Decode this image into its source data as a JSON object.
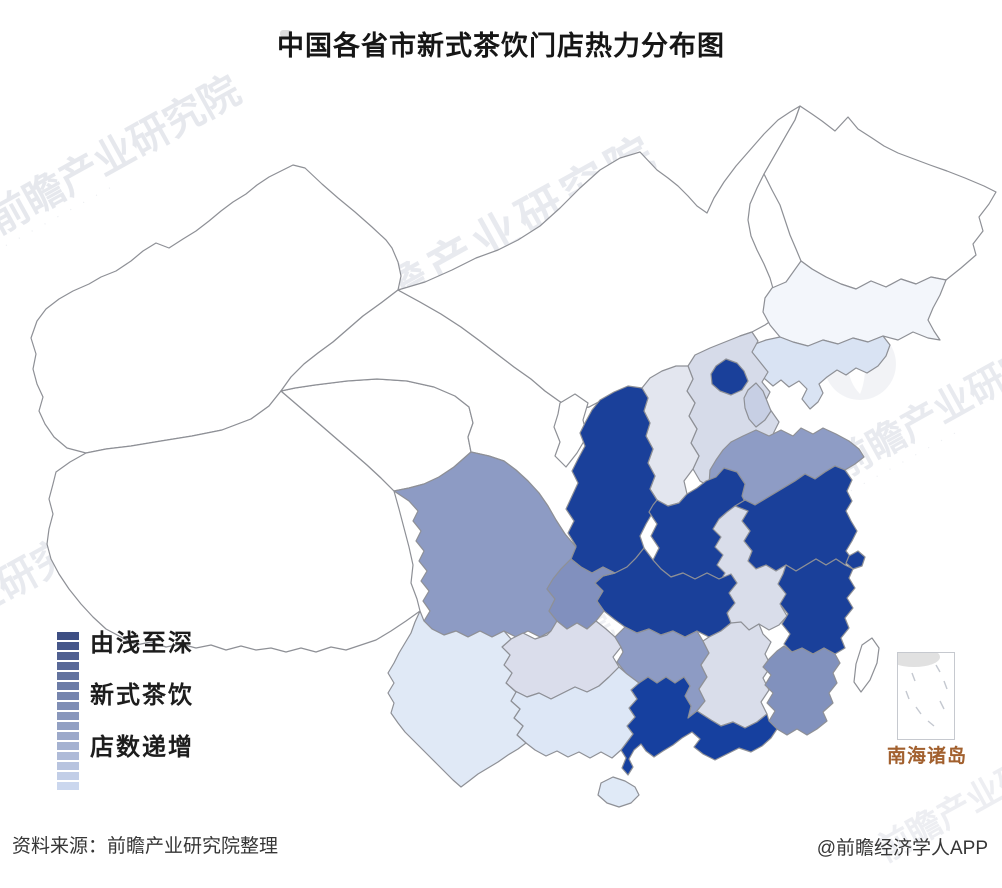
{
  "title": "中国各省市新式茶饮门店热力分布图",
  "legend": {
    "line1": "由浅至深",
    "line2": "新式茶饮",
    "line3": "店数递增",
    "swatches": [
      "#3D4E83",
      "#46578A",
      "#506091",
      "#596998",
      "#63739F",
      "#6C7CA7",
      "#7685AE",
      "#7F8EB5",
      "#8997BC",
      "#92A0C3",
      "#9CA9CA",
      "#A5B2D1",
      "#AFBBD8",
      "#B8C4DF",
      "#C2CEE7",
      "#CBD7EE"
    ]
  },
  "inset": {
    "label": "南海诸岛",
    "label_color": "#a2602e"
  },
  "footer": {
    "source": "资料来源：前瞻产业研究院整理",
    "credit": "@前瞻经济学人APP"
  },
  "watermark": {
    "text": "前瞻产业研究院",
    "dots": "· · · · · · · · ·"
  },
  "map": {
    "stroke": "#8e9096",
    "provinces": {
      "xinjiang": {
        "name": "新疆",
        "color": "#FFFFFF",
        "level": 0
      },
      "xizang": {
        "name": "西藏",
        "color": "#FFFFFF",
        "level": 0
      },
      "qinghai": {
        "name": "青海",
        "color": "#FFFFFF",
        "level": 0
      },
      "gansu": {
        "name": "甘肃",
        "color": "#FFFFFF",
        "level": 0
      },
      "neimenggu": {
        "name": "内蒙古",
        "color": "#FFFFFF",
        "level": 0
      },
      "heilongjiang": {
        "name": "黑龙江",
        "color": "#FFFFFF",
        "level": 0
      },
      "jilin": {
        "name": "吉林",
        "color": "#F3F6FB",
        "level": 1
      },
      "liaoning": {
        "name": "辽宁",
        "color": "#D9E3F3",
        "level": 2
      },
      "hebei": {
        "name": "河北",
        "color": "#D6DBE9",
        "level": 3
      },
      "shanxi": {
        "name": "山西",
        "color": "#E3E6EF",
        "level": 3
      },
      "ningxia": {
        "name": "宁夏",
        "color": "#FFFFFF",
        "level": 0
      },
      "shaanxi": {
        "name": "陕西",
        "color": "#1A409A",
        "level": 5
      },
      "beijing": {
        "name": "北京",
        "color": "#1A409A",
        "level": 5
      },
      "tianjin": {
        "name": "天津",
        "color": "#C7CFE4",
        "level": 3
      },
      "shandong": {
        "name": "山东",
        "color": "#8E9CC5",
        "level": 4
      },
      "henan": {
        "name": "河南",
        "color": "#1A409A",
        "level": 5
      },
      "jiangsu": {
        "name": "江苏",
        "color": "#1A409A",
        "level": 5
      },
      "shanghai": {
        "name": "上海",
        "color": "#1A409A",
        "level": 5
      },
      "anhui": {
        "name": "安徽",
        "color": "#D9DDEA",
        "level": 3
      },
      "hubei": {
        "name": "湖北",
        "color": "#1A409A",
        "level": 5
      },
      "sichuan": {
        "name": "四川",
        "color": "#8D9BC4",
        "level": 4
      },
      "chongqing": {
        "name": "重庆",
        "color": "#8190BE",
        "level": 4
      },
      "guizhou": {
        "name": "贵州",
        "color": "#DADDEB",
        "level": 3
      },
      "hunan": {
        "name": "湖南",
        "color": "#8D9BC4",
        "level": 4
      },
      "jiangxi": {
        "name": "江西",
        "color": "#D9DDEA",
        "level": 3
      },
      "zhejiang": {
        "name": "浙江",
        "color": "#1A409A",
        "level": 5
      },
      "fujian": {
        "name": "福建",
        "color": "#8191BD",
        "level": 4
      },
      "guangdong": {
        "name": "广东",
        "color": "#16409F",
        "level": 5
      },
      "guangxi": {
        "name": "广西",
        "color": "#DDE7F6",
        "level": 2
      },
      "yunnan": {
        "name": "云南",
        "color": "#E0E9F6",
        "level": 2
      },
      "hainan": {
        "name": "海南",
        "color": "#E0EAF7",
        "level": 2
      },
      "taiwan": {
        "name": "台湾",
        "color": "#FFFFFF",
        "level": 0
      }
    }
  },
  "chart_data": {
    "type": "heatmap",
    "title": "中国各省市新式茶饮门店热力分布图",
    "legend": [
      "由浅至深",
      "新式茶饮",
      "店数递增"
    ],
    "value_scale": "ordinal 0-5 (5 = deepest color = most stores)",
    "level_palette": {
      "0": "#FFFFFF",
      "1": "#F3F6FB",
      "2": "#DDE7F6",
      "3": "#D8DCEA",
      "4": "#8D9BC4",
      "5": "#1A409A"
    },
    "series": [
      {
        "province": "北京",
        "level": 5
      },
      {
        "province": "陕西",
        "level": 5
      },
      {
        "province": "河南",
        "level": 5
      },
      {
        "province": "湖北",
        "level": 5
      },
      {
        "province": "江苏",
        "level": 5
      },
      {
        "province": "上海",
        "level": 5
      },
      {
        "province": "浙江",
        "level": 5
      },
      {
        "province": "广东",
        "level": 5
      },
      {
        "province": "山东",
        "level": 4
      },
      {
        "province": "四川",
        "level": 4
      },
      {
        "province": "重庆",
        "level": 4
      },
      {
        "province": "湖南",
        "level": 4
      },
      {
        "province": "福建",
        "level": 4
      },
      {
        "province": "天津",
        "level": 3
      },
      {
        "province": "河北",
        "level": 3
      },
      {
        "province": "山西",
        "level": 3
      },
      {
        "province": "安徽",
        "level": 3
      },
      {
        "province": "江西",
        "level": 3
      },
      {
        "province": "贵州",
        "level": 3
      },
      {
        "province": "辽宁",
        "level": 2
      },
      {
        "province": "云南",
        "level": 2
      },
      {
        "province": "广西",
        "level": 2
      },
      {
        "province": "海南",
        "level": 2
      },
      {
        "province": "吉林",
        "level": 1
      },
      {
        "province": "黑龙江",
        "level": 0
      },
      {
        "province": "内蒙古",
        "level": 0
      },
      {
        "province": "新疆",
        "level": 0
      },
      {
        "province": "西藏",
        "level": 0
      },
      {
        "province": "青海",
        "level": 0
      },
      {
        "province": "甘肃",
        "level": 0
      },
      {
        "province": "宁夏",
        "level": 0
      },
      {
        "province": "台湾",
        "level": 0
      }
    ]
  }
}
